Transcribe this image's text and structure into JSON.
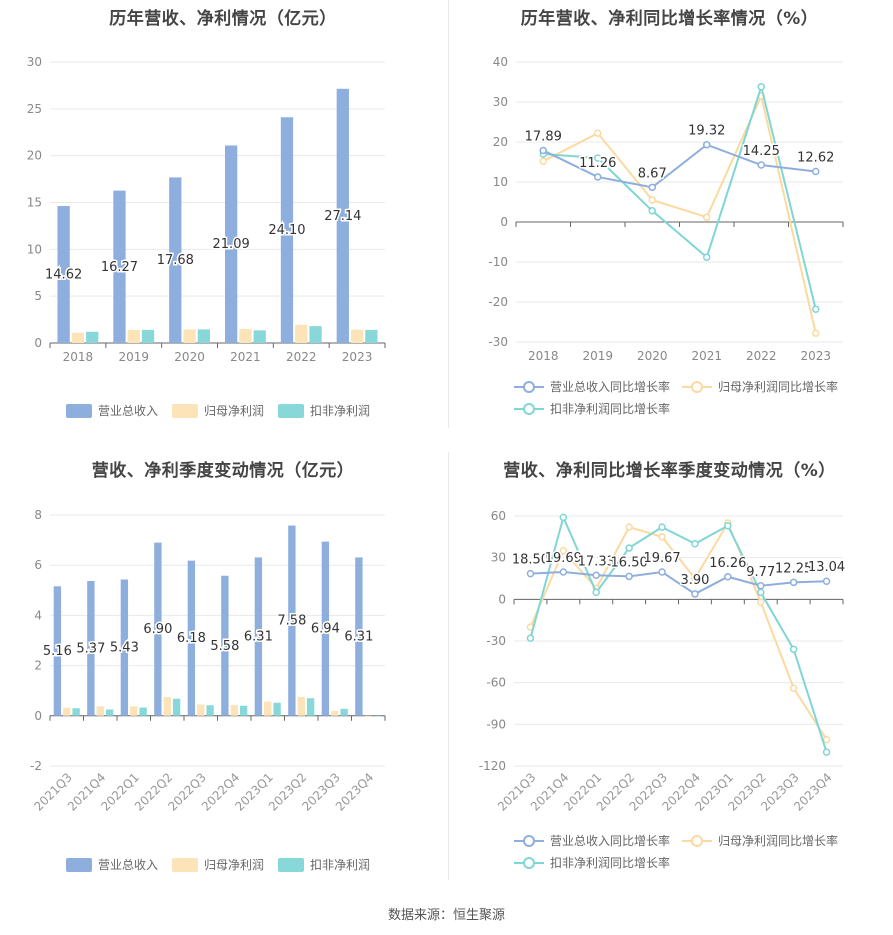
{
  "colors": {
    "revenue": "#8eaedd",
    "net_profit": "#fde3b8",
    "deducted": "#88d8da",
    "revenue_line": "#8eaedd",
    "net_profit_line": "#fcd9a0",
    "deducted_line": "#7fd6d4"
  },
  "footer": "数据来源：恒生聚源",
  "chart_data": [
    {
      "id": "annual_amounts",
      "type": "bar",
      "title": "历年营收、净利情况（亿元）",
      "categories": [
        "2018",
        "2019",
        "2020",
        "2021",
        "2022",
        "2023"
      ],
      "ylim": [
        0,
        30
      ],
      "yticks": [
        0,
        5,
        10,
        15,
        20,
        25,
        30
      ],
      "series": [
        {
          "name": "营业总收入",
          "values": [
            14.62,
            16.27,
            17.68,
            21.09,
            24.1,
            27.14
          ]
        },
        {
          "name": "归母净利润",
          "values": [
            1.1,
            1.4,
            1.45,
            1.5,
            1.95,
            1.42
          ]
        },
        {
          "name": "扣非净利润",
          "values": [
            1.2,
            1.4,
            1.45,
            1.35,
            1.8,
            1.4
          ]
        }
      ],
      "data_labels": [
        "14.62",
        "16.27",
        "17.68",
        "21.09",
        "24.10",
        "27.14"
      ],
      "grid": true,
      "legend_position": "bottom"
    },
    {
      "id": "annual_growth",
      "type": "line",
      "title": "历年营收、净利同比增长率情况（%）",
      "categories": [
        "2018",
        "2019",
        "2020",
        "2021",
        "2022",
        "2023"
      ],
      "ylim": [
        -30,
        40
      ],
      "yticks": [
        -30,
        -20,
        -10,
        0,
        10,
        20,
        30,
        40
      ],
      "series": [
        {
          "name": "营业总收入同比增长率",
          "values": [
            17.89,
            11.26,
            8.67,
            19.32,
            14.25,
            12.62
          ]
        },
        {
          "name": "归母净利润同比增长率",
          "values": [
            15.2,
            22.2,
            5.5,
            1.2,
            31.5,
            -27.8
          ]
        },
        {
          "name": "扣非净利润同比增长率",
          "values": [
            17.0,
            16.0,
            2.8,
            -8.8,
            33.8,
            -21.8
          ]
        }
      ],
      "data_labels": [
        "17.89",
        "11.26",
        "8.67",
        "19.32",
        "14.25",
        "12.62"
      ],
      "grid": true,
      "legend_position": "bottom"
    },
    {
      "id": "quarterly_amounts",
      "type": "bar",
      "title": "营收、净利季度变动情况（亿元）",
      "categories": [
        "2021Q3",
        "2021Q4",
        "2022Q1",
        "2022Q2",
        "2022Q3",
        "2022Q4",
        "2023Q1",
        "2023Q2",
        "2023Q3",
        "2023Q4"
      ],
      "ylim": [
        -2,
        8
      ],
      "yticks": [
        -2,
        0,
        2,
        4,
        6,
        8
      ],
      "series": [
        {
          "name": "营业总收入",
          "values": [
            5.16,
            5.37,
            5.43,
            6.9,
            6.18,
            5.58,
            6.31,
            7.58,
            6.94,
            6.31
          ]
        },
        {
          "name": "归母净利润",
          "values": [
            0.32,
            0.38,
            0.38,
            0.75,
            0.45,
            0.43,
            0.57,
            0.75,
            0.2,
            0.0
          ]
        },
        {
          "name": "扣非净利润",
          "values": [
            0.3,
            0.25,
            0.33,
            0.68,
            0.42,
            0.4,
            0.52,
            0.7,
            0.28,
            0.0
          ]
        }
      ],
      "data_labels": [
        "5.16",
        "5.37",
        "5.43",
        "6.90",
        "6.18",
        "5.58",
        "6.31",
        "7.58",
        "6.94",
        "6.31"
      ],
      "grid": true,
      "legend_position": "bottom"
    },
    {
      "id": "quarterly_growth",
      "type": "line",
      "title": "营收、净利同比增长率季度变动情况（%）",
      "categories": [
        "2021Q3",
        "2021Q4",
        "2022Q1",
        "2022Q2",
        "2022Q3",
        "2022Q4",
        "2023Q1",
        "2023Q2",
        "2023Q3",
        "2023Q4"
      ],
      "ylim": [
        -120,
        60
      ],
      "yticks": [
        -120,
        -90,
        -60,
        -30,
        0,
        30,
        60
      ],
      "series": [
        {
          "name": "营业总收入同比增长率",
          "values": [
            18.5,
            19.69,
            17.33,
            16.5,
            19.67,
            3.9,
            16.26,
            9.77,
            12.25,
            13.04
          ]
        },
        {
          "name": "归母净利润同比增长率",
          "values": [
            -20,
            35,
            8,
            52,
            45,
            15,
            55,
            -2,
            -64,
            -101
          ]
        },
        {
          "name": "扣非净利润同比增长率",
          "values": [
            -28,
            59,
            5,
            37,
            52,
            40,
            53,
            5,
            -36,
            -110
          ]
        }
      ],
      "data_labels": [
        "18.50",
        "19.69",
        "17.33",
        "16.50",
        "19.67",
        "3.90",
        "16.26",
        "9.77",
        "12.25",
        "13.04"
      ],
      "grid": true,
      "legend_position": "bottom"
    }
  ]
}
